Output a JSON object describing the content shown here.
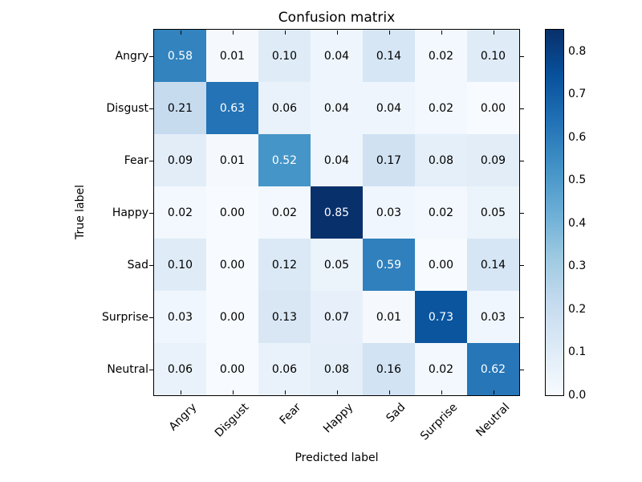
{
  "chart_data": {
    "type": "heatmap",
    "title": "Confusion matrix",
    "xlabel": "Predicted label",
    "ylabel": "True label",
    "x_categories": [
      "Angry",
      "Disgust",
      "Fear",
      "Happy",
      "Sad",
      "Surprise",
      "Neutral"
    ],
    "y_categories": [
      "Angry",
      "Disgust",
      "Fear",
      "Happy",
      "Sad",
      "Surprise",
      "Neutral"
    ],
    "matrix": [
      [
        0.58,
        0.01,
        0.1,
        0.04,
        0.14,
        0.02,
        0.1
      ],
      [
        0.21,
        0.63,
        0.06,
        0.04,
        0.04,
        0.02,
        0.0
      ],
      [
        0.09,
        0.01,
        0.52,
        0.04,
        0.17,
        0.08,
        0.09
      ],
      [
        0.02,
        0.0,
        0.02,
        0.85,
        0.03,
        0.02,
        0.05
      ],
      [
        0.1,
        0.0,
        0.12,
        0.05,
        0.59,
        0.0,
        0.14
      ],
      [
        0.03,
        0.0,
        0.13,
        0.07,
        0.01,
        0.73,
        0.03
      ],
      [
        0.06,
        0.0,
        0.06,
        0.08,
        0.16,
        0.02,
        0.62
      ]
    ],
    "value_decimals": 2,
    "vmin": 0.0,
    "vmax": 0.85,
    "colormap": "Blues",
    "colormap_stops": [
      "#f7fbff",
      "#deebf7",
      "#c6dbef",
      "#9ecae1",
      "#6baed6",
      "#4292c6",
      "#2171b5",
      "#08519c",
      "#08306b"
    ],
    "colorbar_tick_labels": [
      "0.0",
      "0.1",
      "0.2",
      "0.3",
      "0.4",
      "0.5",
      "0.6",
      "0.7",
      "0.8"
    ],
    "colorbar_tick_values": [
      0.0,
      0.1,
      0.2,
      0.3,
      0.4,
      0.5,
      0.6,
      0.7,
      0.8
    ],
    "colorbar_position": "right",
    "text_color_threshold": 0.425,
    "cell_text_light": "#ffffff",
    "cell_text_dark": "#000000",
    "axis_color": "#000000",
    "background_color": "#ffffff",
    "grid": false
  }
}
